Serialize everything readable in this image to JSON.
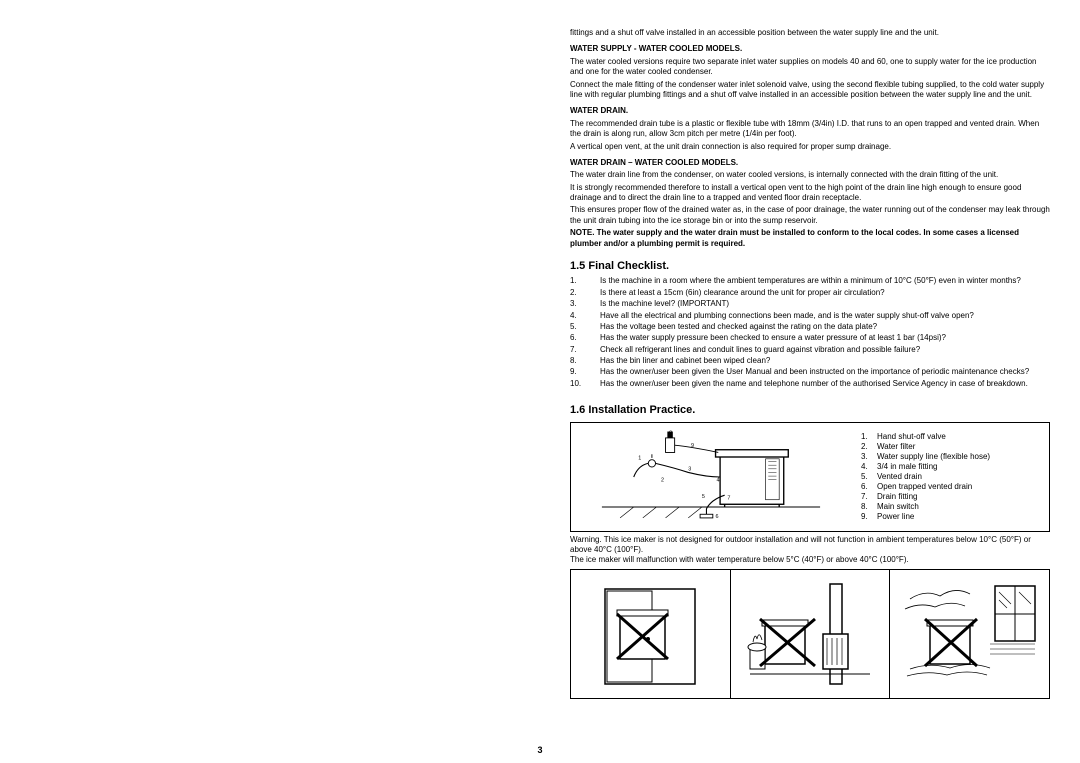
{
  "intro_para": "fittings and a shut off valve installed in an accessible position between the water supply line and the unit.",
  "sub1_heading": "WATER SUPPLY - WATER COOLED MODELS.",
  "sub1_p1": "The water cooled versions require two separate inlet water supplies on models 40 and 60, one to supply water for the ice production and one for the water cooled condenser.",
  "sub1_p2": "Connect the  male fitting of the condenser water inlet solenoid valve, using the second flexible tubing supplied, to the cold water supply line with regular plumbing fittings and a shut off valve installed in an accessible position between the water supply line and the unit.",
  "sub2_heading": "WATER DRAIN.",
  "sub2_p1": "The recommended drain tube is a plastic or flexible tube with 18mm (3/4in) I.D. that runs to an open trapped and vented drain. When the drain is along run, allow 3cm pitch per metre (1/4in per foot).",
  "sub2_p2": "A vertical open vent, at the unit drain connection is also required for proper sump drainage.",
  "sub3_heading": "WATER DRAIN – WATER COOLED MODELS.",
  "sub3_p1": "The water drain line from the condenser, on water cooled versions, is internally connected with the drain fitting of the unit.",
  "sub3_p2": "It is strongly recommended therefore to install a vertical open vent to the high point of the drain line high enough to ensure good drainage and to direct the drain line to a trapped and vented floor drain receptacle.",
  "sub3_p3": "This ensures proper flow of the drained water as, in the case of poor drainage, the water running out of the condenser may leak through the unit drain tubing into the ice storage bin or into the sump reservoir.",
  "note": "NOTE. The water supply and the water drain must be installed to conform to the local codes. In some cases a licensed plumber and/or a plumbing permit is required.",
  "sec15_heading": "1.5   Final Checklist.",
  "checklist": [
    {
      "n": "1.",
      "t": "Is the machine in a room where the ambient temperatures are within a minimum of 10°C (50°F) even in winter months?"
    },
    {
      "n": "2.",
      "t": "Is there at least a 15cm (6in) clearance around the unit for proper air circulation?"
    },
    {
      "n": "3.",
      "t": "Is the machine level? (IMPORTANT)"
    },
    {
      "n": "4.",
      "t": "Have all the electrical and plumbing connections been made, and is the water supply shut-off valve open?"
    },
    {
      "n": "5.",
      "t": "Has the voltage been tested and checked against the rating on the data plate?"
    },
    {
      "n": "6.",
      "t": "Has the water supply pressure been checked to ensure a water pressure of at least 1 bar (14psi)?"
    },
    {
      "n": "7.",
      "t": "Check all refrigerant lines and conduit lines to guard against vibration and possible failure?"
    },
    {
      "n": "8.",
      "t": "Has the bin liner and cabinet been wiped clean?"
    },
    {
      "n": "9.",
      "t": "Has the owner/user been given the User Manual and been instructed on the importance of periodic maintenance checks?"
    },
    {
      "n": "10.",
      "t": "Has the owner/user been given the name and telephone number of the authorised Service Agency in case of breakdown."
    }
  ],
  "sec16_heading": "1.6   Installation Practice.",
  "legend": [
    {
      "n": "1.",
      "t": "Hand shut-off valve"
    },
    {
      "n": "2.",
      "t": "Water filter"
    },
    {
      "n": "3.",
      "t": "Water supply line (flexible hose)"
    },
    {
      "n": "4.",
      "t": "3/4 in male fitting"
    },
    {
      "n": "5.",
      "t": "Vented drain"
    },
    {
      "n": "6.",
      "t": "Open trapped vented drain"
    },
    {
      "n": "7.",
      "t": "Drain fitting"
    },
    {
      "n": "8.",
      "t": "Main switch"
    },
    {
      "n": "9.",
      "t": "Power line"
    }
  ],
  "warning_p1": "Warning. This ice maker is not designed for outdoor installation and will not function in ambient temperatures below 10°C (50°F) or above 40°C (100°F).",
  "warning_p2": "The ice maker will malfunction with water temperature below 5°C (40°F) or above 40°C (100°F).",
  "page_number": "3"
}
